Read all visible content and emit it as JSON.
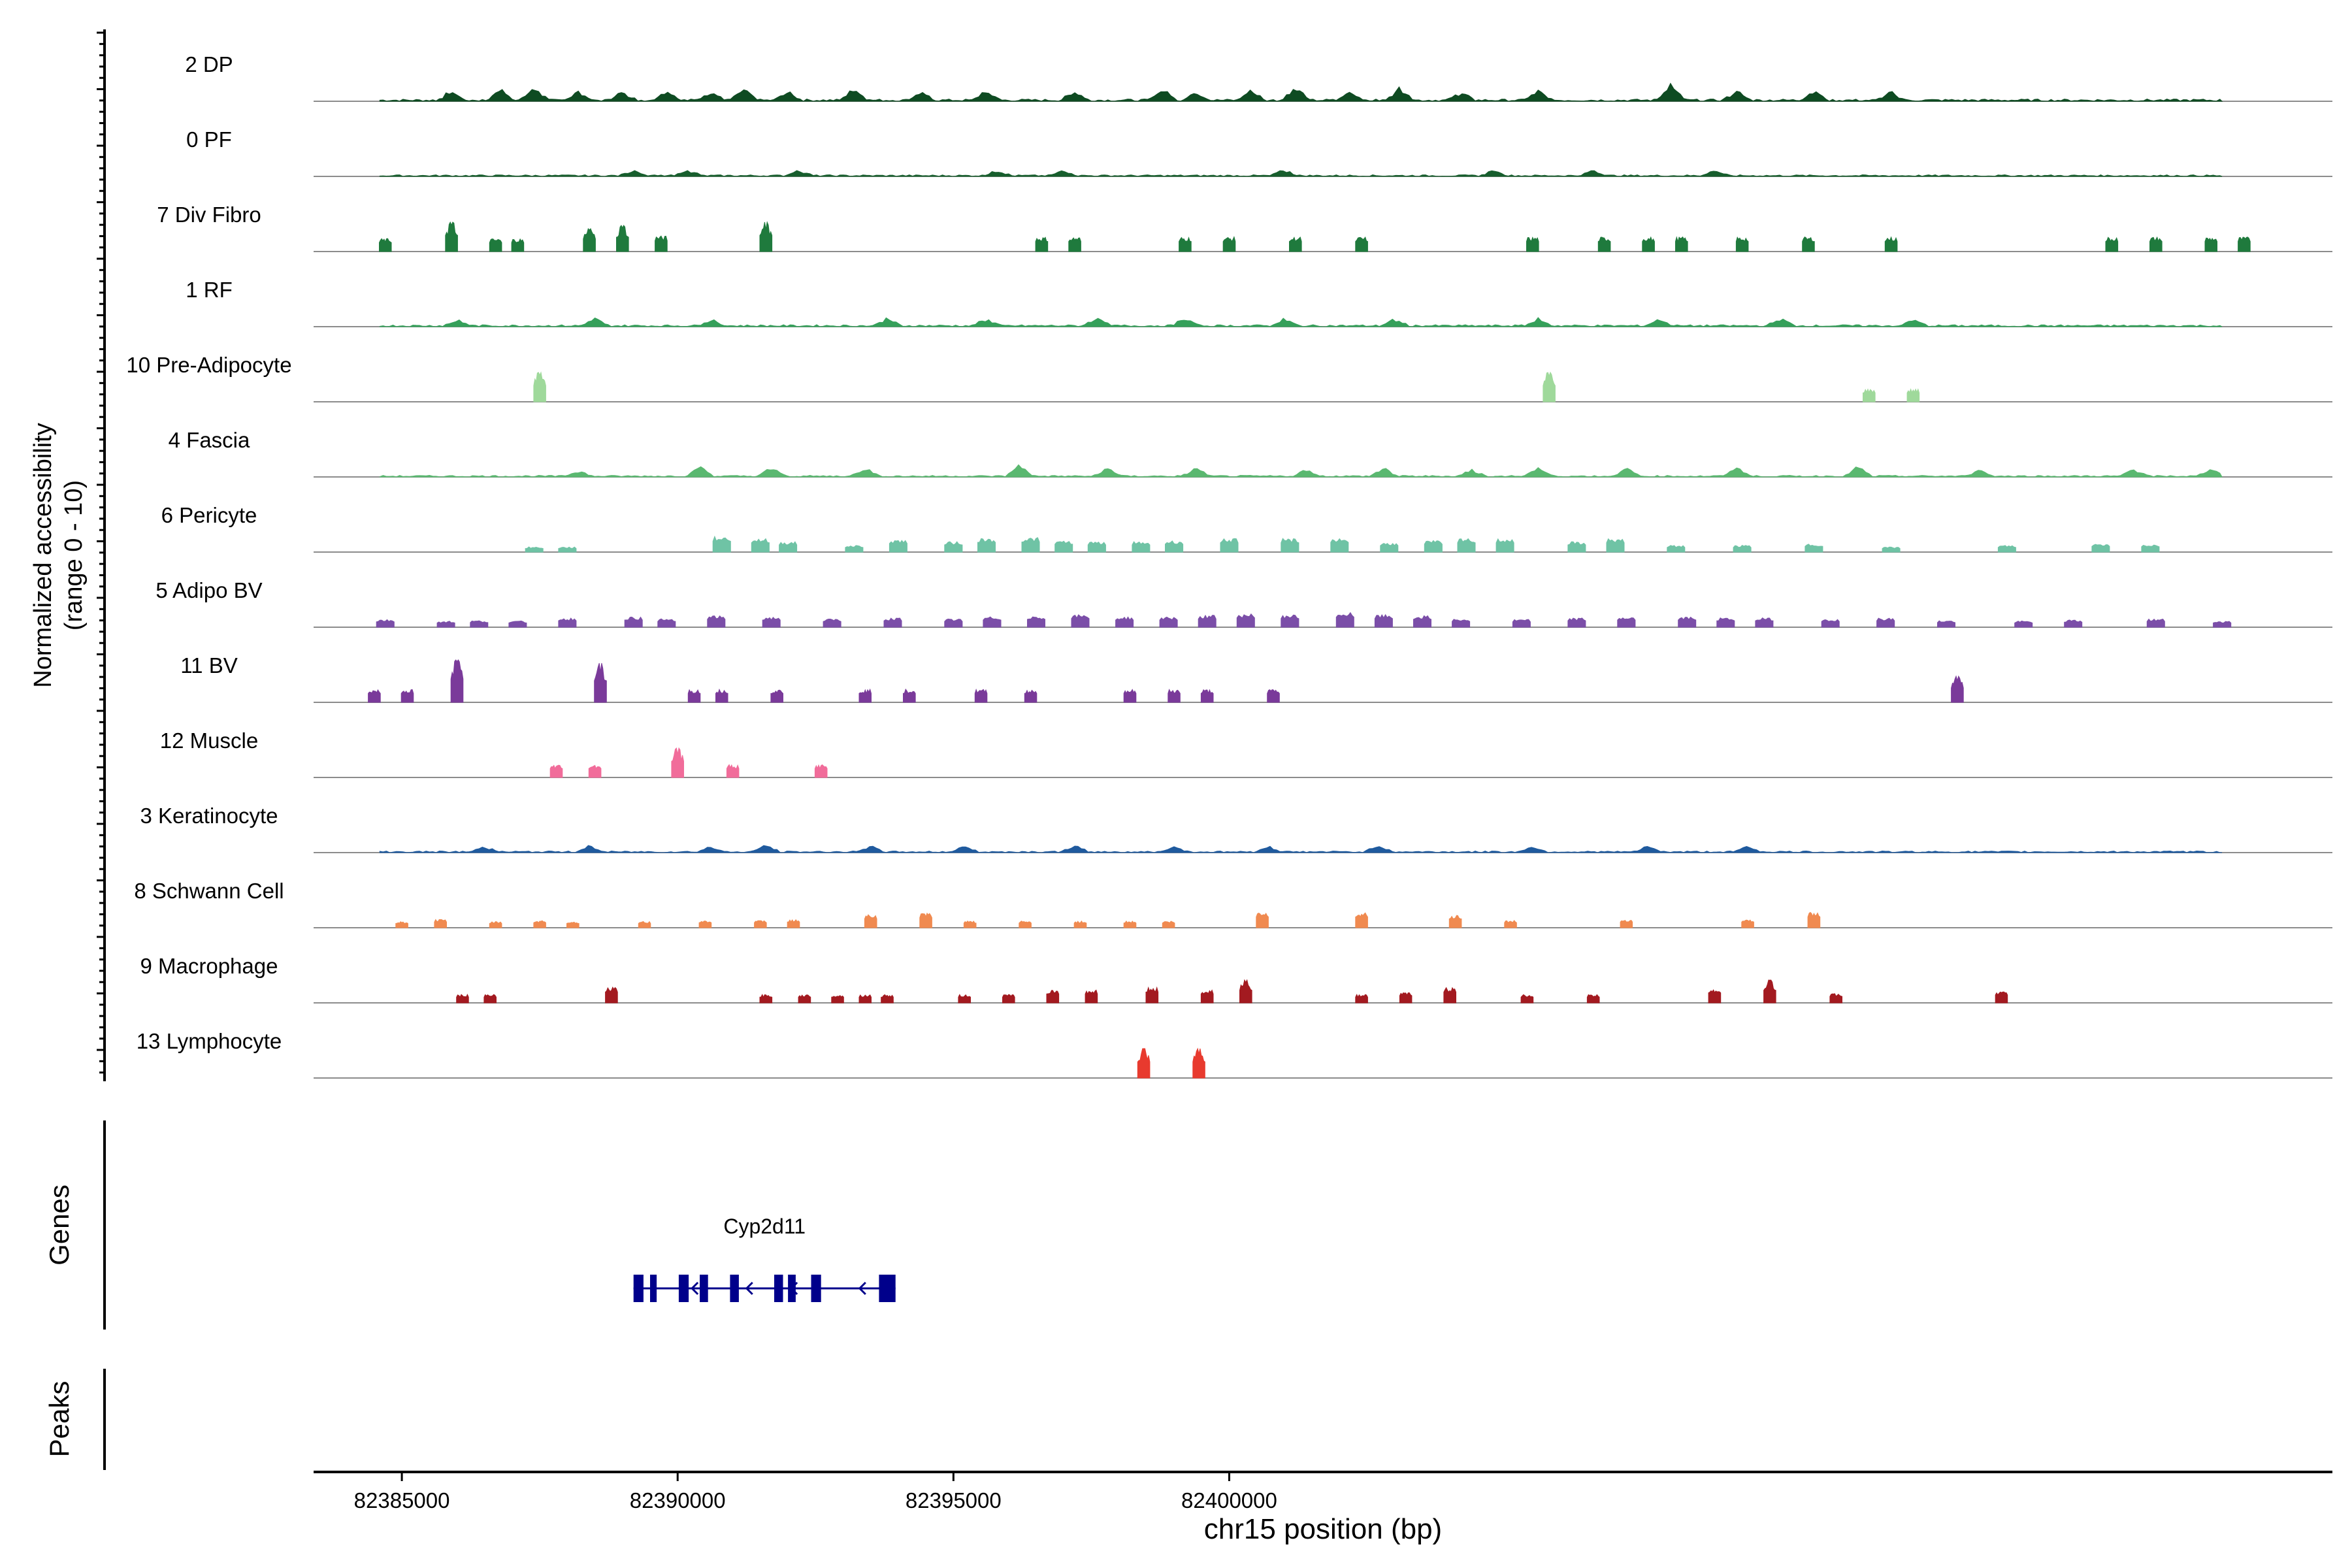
{
  "chart_data": {
    "type": "area",
    "title": "",
    "xlabel": "chr15 position (bp)",
    "ylabel_line1": "Normalized accessibility",
    "ylabel_line2": "(range 0 - 10)",
    "genes_label": "Genes",
    "peaks_label": "Peaks",
    "xlim": [
      82383400,
      82420000
    ],
    "track_ylim": [
      0,
      10
    ],
    "x_ticks": [
      82385000,
      82390000,
      82395000,
      82400000
    ],
    "x_tick_labels": [
      "82385000",
      "82390000",
      "82395000",
      "82400000"
    ],
    "tracks": [
      {
        "name": "2 DP",
        "color": "#0e4b22",
        "pattern": "noise",
        "intensity": 0.35,
        "peaks": [
          [
            82385900,
            1.6
          ],
          [
            82386800,
            2
          ],
          [
            82387400,
            2.3
          ],
          [
            82388200,
            1.5
          ],
          [
            82389000,
            1.6
          ],
          [
            82389800,
            2
          ],
          [
            82390600,
            1.6
          ],
          [
            82391200,
            1.8
          ],
          [
            82392000,
            1.5
          ],
          [
            82393200,
            2.2
          ],
          [
            82394400,
            1.4
          ],
          [
            82395600,
            1.6
          ],
          [
            82397200,
            1.6
          ],
          [
            82398800,
            2
          ],
          [
            82399400,
            1.6
          ],
          [
            82400400,
            1.8
          ],
          [
            82401200,
            2.5
          ],
          [
            82402200,
            1.6
          ],
          [
            82403100,
            2.4
          ],
          [
            82404200,
            1.4
          ],
          [
            82405600,
            1.6
          ],
          [
            82408000,
            2.8
          ],
          [
            82409200,
            1.6
          ],
          [
            82410600,
            1.8
          ],
          [
            82412000,
            1.4
          ]
        ]
      },
      {
        "name": "0 PF",
        "color": "#175e2d",
        "pattern": "noise",
        "intensity": 0.25,
        "peaks": [
          [
            82389200,
            1
          ],
          [
            82390200,
            1
          ],
          [
            82392200,
            1
          ],
          [
            82395800,
            1
          ],
          [
            82397000,
            1
          ],
          [
            82401000,
            1
          ],
          [
            82404800,
            1
          ],
          [
            82406600,
            1
          ],
          [
            82408800,
            1
          ]
        ]
      },
      {
        "name": "7 Div Fibro",
        "color": "#1f7a3d",
        "pattern": "sparse",
        "peaks": [
          [
            82384700,
            2.5
          ],
          [
            82385900,
            4.5
          ],
          [
            82386700,
            2.5
          ],
          [
            82387100,
            2.5
          ],
          [
            82388400,
            3.5
          ],
          [
            82389000,
            4
          ],
          [
            82389700,
            3
          ],
          [
            82391600,
            4.5
          ],
          [
            82396600,
            2.8
          ],
          [
            82397200,
            2.8
          ],
          [
            82399200,
            2.8
          ],
          [
            82400000,
            2.8
          ],
          [
            82401200,
            2.8
          ],
          [
            82402400,
            2.8
          ],
          [
            82405500,
            2.8
          ],
          [
            82406800,
            2.8
          ],
          [
            82407600,
            2.8
          ],
          [
            82408200,
            2.8
          ],
          [
            82409300,
            2.8
          ],
          [
            82410500,
            2.8
          ],
          [
            82412000,
            2.8
          ],
          [
            82416000,
            2.8
          ],
          [
            82416800,
            2.8
          ],
          [
            82417800,
            2.8
          ],
          [
            82418400,
            2.8
          ]
        ]
      },
      {
        "name": "1 RF",
        "color": "#35a05a",
        "pattern": "noise",
        "intensity": 0.3,
        "peaks": [
          [
            82386000,
            1
          ],
          [
            82388500,
            1.2
          ],
          [
            82390600,
            1.1
          ],
          [
            82393800,
            1.3
          ],
          [
            82395600,
            1.2
          ],
          [
            82397600,
            1.4
          ],
          [
            82399200,
            1.3
          ],
          [
            82401000,
            1.2
          ],
          [
            82403000,
            1.1
          ],
          [
            82405600,
            1.2
          ],
          [
            82407800,
            1.2
          ],
          [
            82410000,
            1.3
          ],
          [
            82412400,
            1.1
          ]
        ]
      },
      {
        "name": "10 Pre-Adipocyte",
        "color": "#9fd99b",
        "pattern": "sparse",
        "peaks": [
          [
            82387500,
            4.5
          ],
          [
            82405800,
            4.5
          ],
          [
            82411600,
            2.5
          ],
          [
            82412400,
            2.5
          ]
        ]
      },
      {
        "name": "4 Fascia",
        "color": "#5ab870",
        "pattern": "noise",
        "intensity": 0.25,
        "peaks": [
          [
            82388200,
            1
          ],
          [
            82390400,
            1.8
          ],
          [
            82391700,
            1.5
          ],
          [
            82393400,
            1.6
          ],
          [
            82396200,
            2
          ],
          [
            82397800,
            1.4
          ],
          [
            82399400,
            1.4
          ],
          [
            82401400,
            1.2
          ],
          [
            82402800,
            1.4
          ],
          [
            82404400,
            1.2
          ],
          [
            82405600,
            1.6
          ],
          [
            82407200,
            1.4
          ],
          [
            82409200,
            1.6
          ],
          [
            82411400,
            1.6
          ],
          [
            82413600,
            1.2
          ],
          [
            82416400,
            1.3
          ],
          [
            82417800,
            1.5
          ]
        ]
      },
      {
        "name": "6 Pericyte",
        "color": "#6fc3a5",
        "pattern": "peaks",
        "peaks": [
          [
            82387400,
            1
          ],
          [
            82388000,
            1
          ],
          [
            82390800,
            3
          ],
          [
            82391500,
            2.6
          ],
          [
            82392000,
            2
          ],
          [
            82393200,
            1.3
          ],
          [
            82394000,
            2.4
          ],
          [
            82395000,
            2
          ],
          [
            82395600,
            2.7
          ],
          [
            82396400,
            2.8
          ],
          [
            82397000,
            2.2
          ],
          [
            82397600,
            2
          ],
          [
            82398400,
            2
          ],
          [
            82399000,
            2.2
          ],
          [
            82400000,
            2.6
          ],
          [
            82401100,
            2.6
          ],
          [
            82402000,
            2.7
          ],
          [
            82402900,
            1.8
          ],
          [
            82403700,
            2.2
          ],
          [
            82404300,
            2.6
          ],
          [
            82405000,
            2.6
          ],
          [
            82406300,
            2
          ],
          [
            82407000,
            2.6
          ],
          [
            82408100,
            1.3
          ],
          [
            82409300,
            1.3
          ],
          [
            82410600,
            1.6
          ],
          [
            82412000,
            1
          ],
          [
            82414100,
            1.3
          ],
          [
            82415800,
            1.6
          ],
          [
            82416700,
            1.5
          ]
        ]
      },
      {
        "name": "5 Adipo BV",
        "color": "#7b4ea8",
        "pattern": "peaks",
        "peaks": [
          [
            82384700,
            1.5
          ],
          [
            82385800,
            1.2
          ],
          [
            82386400,
            1.3
          ],
          [
            82387100,
            1.2
          ],
          [
            82388000,
            1.8
          ],
          [
            82389200,
            2
          ],
          [
            82389800,
            1.6
          ],
          [
            82390700,
            2.2
          ],
          [
            82391700,
            2
          ],
          [
            82392800,
            1.6
          ],
          [
            82393900,
            1.8
          ],
          [
            82395000,
            1.6
          ],
          [
            82395700,
            2
          ],
          [
            82396500,
            2.2
          ],
          [
            82397300,
            2.4
          ],
          [
            82398100,
            2
          ],
          [
            82398900,
            2
          ],
          [
            82399600,
            2.3
          ],
          [
            82400300,
            2.6
          ],
          [
            82401100,
            2.4
          ],
          [
            82402100,
            2.8
          ],
          [
            82402800,
            2.4
          ],
          [
            82403500,
            2.2
          ],
          [
            82404200,
            1.6
          ],
          [
            82405300,
            1.5
          ],
          [
            82406300,
            1.8
          ],
          [
            82407200,
            2
          ],
          [
            82408300,
            2
          ],
          [
            82409000,
            1.8
          ],
          [
            82409700,
            1.8
          ],
          [
            82410900,
            1.6
          ],
          [
            82411900,
            1.8
          ],
          [
            82413000,
            1.3
          ],
          [
            82414400,
            1.2
          ],
          [
            82415300,
            1.4
          ],
          [
            82416800,
            1.6
          ],
          [
            82418000,
            1.2
          ]
        ]
      },
      {
        "name": "11 BV",
        "color": "#7a3a9a",
        "pattern": "sparse",
        "peaks": [
          [
            82384500,
            2.5
          ],
          [
            82385100,
            2.5
          ],
          [
            82386000,
            6.5
          ],
          [
            82388600,
            6
          ],
          [
            82390300,
            2.5
          ],
          [
            82390800,
            2.5
          ],
          [
            82391800,
            2.5
          ],
          [
            82393400,
            2.5
          ],
          [
            82394200,
            2.5
          ],
          [
            82395500,
            2.5
          ],
          [
            82396400,
            2.5
          ],
          [
            82398200,
            2.5
          ],
          [
            82399000,
            2.5
          ],
          [
            82399600,
            2.5
          ],
          [
            82400800,
            2.5
          ],
          [
            82413200,
            4
          ]
        ]
      },
      {
        "name": "12 Muscle",
        "color": "#f16c9a",
        "pattern": "sparse",
        "peaks": [
          [
            82387800,
            2.5
          ],
          [
            82388500,
            2.5
          ],
          [
            82390000,
            4.5
          ],
          [
            82391000,
            2.5
          ],
          [
            82392600,
            2.5
          ]
        ]
      },
      {
        "name": "3 Keratinocyte",
        "color": "#1f5a9e",
        "pattern": "noise",
        "intensity": 0.25,
        "peaks": [
          [
            82386500,
            1
          ],
          [
            82388400,
            1
          ],
          [
            82390600,
            1
          ],
          [
            82391600,
            1.2
          ],
          [
            82393500,
            1
          ],
          [
            82395200,
            1
          ],
          [
            82397200,
            1
          ],
          [
            82399000,
            1
          ],
          [
            82400700,
            1
          ],
          [
            82402700,
            1.2
          ],
          [
            82405500,
            1
          ],
          [
            82407600,
            1
          ],
          [
            82409400,
            1
          ]
        ]
      },
      {
        "name": "8 Schwann Cell",
        "color": "#f08a50",
        "pattern": "sparse",
        "peaks": [
          [
            82385000,
            1.2
          ],
          [
            82385700,
            1.6
          ],
          [
            82386700,
            1.2
          ],
          [
            82387500,
            1.4
          ],
          [
            82388100,
            1.2
          ],
          [
            82389400,
            1.2
          ],
          [
            82390500,
            1.4
          ],
          [
            82391500,
            1.4
          ],
          [
            82392100,
            1.6
          ],
          [
            82393500,
            2.5
          ],
          [
            82394500,
            2.8
          ],
          [
            82395300,
            1.3
          ],
          [
            82396300,
            1.3
          ],
          [
            82397300,
            1.3
          ],
          [
            82398200,
            1.3
          ],
          [
            82398900,
            1.3
          ],
          [
            82400600,
            3
          ],
          [
            82402400,
            3
          ],
          [
            82404100,
            2.5
          ],
          [
            82405100,
            1.4
          ],
          [
            82407200,
            1.6
          ],
          [
            82409400,
            1.6
          ],
          [
            82410600,
            3
          ]
        ]
      },
      {
        "name": "9 Macrophage",
        "color": "#a31a20",
        "pattern": "sparse",
        "peaks": [
          [
            82386100,
            1.6
          ],
          [
            82386600,
            1.6
          ],
          [
            82388800,
            3
          ],
          [
            82391600,
            1.6
          ],
          [
            82392300,
            1.6
          ],
          [
            82392900,
            1.6
          ],
          [
            82393400,
            1.6
          ],
          [
            82393800,
            1.6
          ],
          [
            82395200,
            1.6
          ],
          [
            82396000,
            1.6
          ],
          [
            82396800,
            2.5
          ],
          [
            82397500,
            2.5
          ],
          [
            82398600,
            3
          ],
          [
            82399600,
            2.5
          ],
          [
            82400300,
            3.5
          ],
          [
            82402400,
            1.6
          ],
          [
            82403200,
            2
          ],
          [
            82404000,
            3
          ],
          [
            82405400,
            1.6
          ],
          [
            82406600,
            1.6
          ],
          [
            82408800,
            2.8
          ],
          [
            82409800,
            3.5
          ],
          [
            82411000,
            1.8
          ],
          [
            82414000,
            2.2
          ]
        ]
      },
      {
        "name": "13 Lymphocyte",
        "color": "#e83a2e",
        "pattern": "sparse",
        "peaks": [
          [
            82398450,
            4.5
          ],
          [
            82399450,
            4.5
          ]
        ]
      }
    ],
    "genes": [
      {
        "name": "Cyp2d11",
        "start": 82389200,
        "end": 82393950,
        "strand": "-",
        "exons": [
          [
            82389200,
            82389380
          ],
          [
            82389500,
            82389620
          ],
          [
            82390020,
            82390200
          ],
          [
            82390400,
            82390550
          ],
          [
            82390950,
            82391110
          ],
          [
            82391750,
            82391910
          ],
          [
            82392000,
            82392140
          ],
          [
            82392420,
            82392600
          ],
          [
            82393650,
            82393950
          ]
        ],
        "arrows": [
          82390260,
          82391250,
          82392060,
          82393300
        ]
      }
    ]
  }
}
